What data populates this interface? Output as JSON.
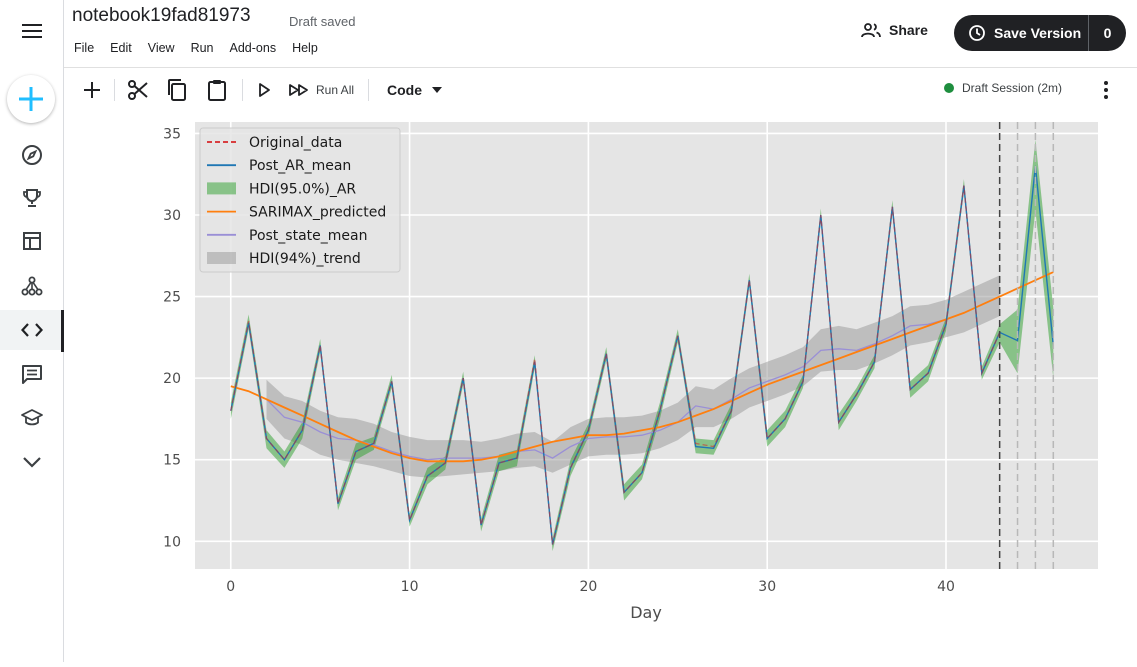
{
  "header": {
    "notebook_title": "notebook19fad81973",
    "save_status": "Draft saved",
    "menu": [
      "File",
      "Edit",
      "View",
      "Run",
      "Add-ons",
      "Help"
    ],
    "share_label": "Share",
    "save_version_label": "Save Version",
    "save_version_count": "0"
  },
  "toolbar": {
    "run_all_label": "Run All",
    "cell_type": "Code",
    "session_status": "Draft Session (2m)",
    "session_color": "#1e8e3e"
  },
  "sidebar": {
    "icons": [
      "create-icon",
      "compass-icon",
      "trophy-icon",
      "table-icon",
      "models-icon",
      "code-icon",
      "comments-icon",
      "learn-icon",
      "chevron-down-icon"
    ],
    "active": "code-icon",
    "accent": "#20beff"
  },
  "chart_data": {
    "type": "line",
    "xlabel": "Day",
    "ylabel": "",
    "xlim": [
      -2,
      48.5
    ],
    "ylim": [
      8.3,
      35.7
    ],
    "xticks": [
      0,
      10,
      20,
      30,
      40
    ],
    "yticks": [
      10,
      15,
      20,
      25,
      30,
      35
    ],
    "legend_position": "top-left",
    "legend": [
      "Original_data",
      "Post_AR_mean",
      "HDI(95.0%)_AR",
      "SARIMAX_predicted",
      "Post_state_mean",
      "HDI(94%)_trend"
    ],
    "colors": {
      "original": "#d62728",
      "ar_mean": "#1f77b4",
      "ar_hdi": "#2ca02c",
      "sarimax": "#ff7f0e",
      "state_mean": "#9a8fd6",
      "trend_hdi": "#9e9e9e",
      "vline": "#444444",
      "vline_light": "#b8b8b8"
    },
    "vlines": [
      43,
      44,
      45,
      46
    ],
    "series": {
      "original": [
        18,
        23.5,
        16.3,
        15,
        16.8,
        22,
        12.3,
        15.5,
        16,
        19.8,
        11.3,
        14,
        14.8,
        20,
        11,
        14.8,
        15.1,
        21.2,
        9.8,
        14.5,
        16.8,
        21.5,
        13,
        14.2,
        18,
        22.6,
        16,
        15.8,
        18,
        26,
        16.3,
        17.5,
        19.8,
        30,
        17.3,
        19,
        21,
        30.5,
        19.3,
        20.3,
        23.3,
        31.8,
        20.3,
        22.8
      ],
      "ar_mean": [
        18,
        23.4,
        16.3,
        15,
        16.8,
        22,
        12.3,
        15.5,
        16,
        19.8,
        11.3,
        14,
        14.8,
        20,
        11,
        14.8,
        15.1,
        21,
        9.8,
        14.5,
        16.8,
        21.5,
        13,
        14.2,
        18,
        22.6,
        15.8,
        15.7,
        18,
        26,
        16.3,
        17.5,
        19.8,
        30,
        17.3,
        19,
        21,
        30.5,
        19.3,
        20.3,
        23.3,
        31.8,
        20.3,
        22.8,
        22.3,
        33,
        22
      ],
      "ar_hdi_lower": [
        17.5,
        23,
        15.7,
        14.5,
        16.3,
        21.6,
        11.9,
        15,
        15.6,
        19.4,
        10.9,
        13.5,
        14.4,
        19.6,
        10.6,
        14.3,
        14.6,
        20.6,
        9.4,
        14,
        16.4,
        21.1,
        12.5,
        13.8,
        17.5,
        22.2,
        15.4,
        15.3,
        17.6,
        25.6,
        15.8,
        17,
        19.4,
        29.6,
        16.8,
        18.6,
        20.6,
        30.1,
        18.8,
        19.8,
        22.9,
        31.4,
        19.9,
        22.2,
        20.3,
        30.3,
        20
      ],
      "ar_hdi_upper": [
        18.5,
        23.9,
        16.8,
        15.5,
        17.3,
        22.4,
        12.7,
        16,
        16.4,
        20.2,
        11.7,
        14.5,
        15.2,
        20.4,
        11.4,
        15.3,
        15.6,
        21.4,
        10.2,
        15,
        17.2,
        21.9,
        13.5,
        14.7,
        18.5,
        23,
        16.3,
        16.2,
        18.4,
        26.4,
        16.8,
        18,
        20.2,
        30.4,
        17.8,
        19.4,
        21.4,
        30.9,
        19.8,
        20.8,
        23.7,
        32.2,
        20.7,
        23.3,
        24.2,
        34.6,
        24.3
      ],
      "sarimax": [
        19.5,
        19.2,
        18.7,
        18.2,
        17.7,
        17.2,
        16.7,
        16.2,
        15.8,
        15.4,
        15.1,
        14.9,
        14.9,
        14.9,
        15,
        15.2,
        15.5,
        15.8,
        16.1,
        16.3,
        16.5,
        16.5,
        16.6,
        16.8,
        17,
        17.3,
        17.7,
        18.1,
        18.6,
        19.1,
        19.6,
        20,
        20.4,
        20.8,
        21.2,
        21.6,
        22,
        22.4,
        22.8,
        23.2,
        23.6,
        24,
        24.5,
        25,
        25.5,
        26,
        26.5
      ],
      "state_mean": [
        null,
        null,
        18.7,
        17.6,
        17.3,
        16.7,
        16.3,
        16.2,
        15.9,
        15.5,
        15.2,
        15,
        15.1,
        15.1,
        15.1,
        15.2,
        15.5,
        15.6,
        15.1,
        15.8,
        16.3,
        16.4,
        16.4,
        16.5,
        16.8,
        17.3,
        18.3,
        18.1,
        18.7,
        19.4,
        19.8,
        20.2,
        20.7,
        21.7,
        21.8,
        21.7,
        22.1,
        22.6,
        23.2,
        23.3,
        23.6,
        24,
        24.5,
        25
      ],
      "trend_lower": [
        null,
        null,
        17.5,
        16.3,
        15.9,
        15.3,
        15,
        14.8,
        14.6,
        14.3,
        14,
        13.9,
        14,
        14.1,
        14.2,
        14.3,
        14.5,
        14.6,
        14.2,
        14.7,
        15.2,
        15.3,
        15.3,
        15.4,
        15.7,
        16.2,
        17,
        17,
        17.5,
        18.2,
        18.6,
        19,
        19.5,
        20.4,
        20.5,
        20.5,
        20.9,
        21.4,
        22,
        22.2,
        22.5,
        22.8,
        23.3,
        23.8
      ],
      "trend_upper": [
        null,
        null,
        19.9,
        18.9,
        18.6,
        18,
        17.6,
        17.5,
        17.2,
        16.7,
        16.4,
        16.2,
        16.2,
        16.2,
        16.1,
        16.3,
        16.6,
        16.7,
        16.1,
        17,
        17.5,
        17.6,
        17.6,
        17.7,
        18,
        18.5,
        19.5,
        19.3,
        20,
        20.6,
        21,
        21.4,
        21.9,
        23,
        23.2,
        23,
        23.4,
        23.8,
        24.4,
        24.5,
        24.8,
        25.3,
        25.8,
        26.3
      ]
    }
  }
}
